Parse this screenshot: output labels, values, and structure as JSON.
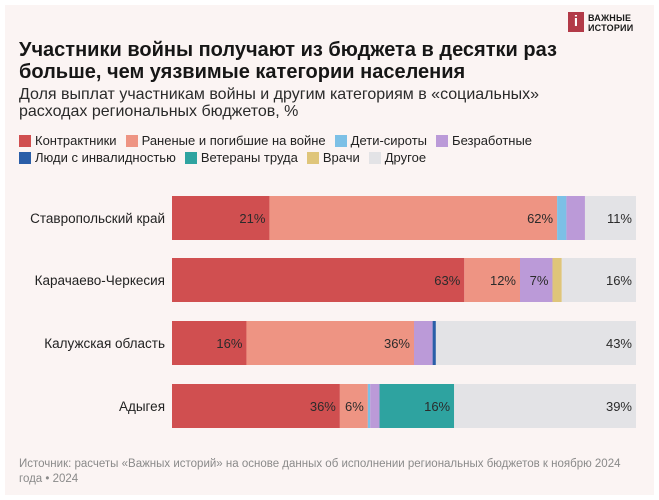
{
  "header": {
    "logo_mark": "i",
    "logo_text": "ВАЖНЫЕ\nИСТОРИИ",
    "title": "Участники войны получают из бюджета в десятки раз больше, чем уязвимые категории населения",
    "subtitle": "Доля выплат участникам войны и другим категориям в «социальных» расходах региональных бюджетов, %"
  },
  "source": "Источник: расчеты «Важных историй» на основе данных об исполнении региональных бюджетов к ноябрю 2024 года • 2024",
  "chart_data": {
    "type": "bar",
    "orientation": "horizontal",
    "stacked": true,
    "normalized": true,
    "unit": "%",
    "categories": [
      "Ставропольский край",
      "Карачаево-Черкесия",
      "Калужская область",
      "Адыгея"
    ],
    "series": [
      {
        "name": "Контрактники",
        "color": "#d04f50",
        "values": [
          21,
          63,
          16,
          36
        ],
        "labels": [
          "21%",
          "63%",
          "16%",
          "36%"
        ]
      },
      {
        "name": "Раненые и погибшие на войне",
        "color": "#ee9483",
        "values": [
          62,
          12,
          36,
          6
        ],
        "labels": [
          "62%",
          "12%",
          "36%",
          "6%"
        ]
      },
      {
        "name": "Дети-сироты",
        "color": "#7cc0e6",
        "values": [
          2,
          0,
          0,
          0.5
        ],
        "labels": [
          "",
          "",
          "",
          ""
        ]
      },
      {
        "name": "Безработные",
        "color": "#bb9ad8",
        "values": [
          4,
          7,
          4,
          2
        ],
        "labels": [
          "",
          "7%",
          "",
          ""
        ]
      },
      {
        "name": "Люди с инвалидностью",
        "color": "#2a5ea8",
        "values": [
          0,
          0,
          0.7,
          0
        ],
        "labels": [
          "",
          "",
          "",
          ""
        ]
      },
      {
        "name": "Ветераны труда",
        "color": "#2ea3a0",
        "values": [
          0,
          0,
          0,
          16
        ],
        "labels": [
          "",
          "",
          "",
          "16%"
        ]
      },
      {
        "name": "Врачи",
        "color": "#dfc57a",
        "values": [
          0,
          2,
          0,
          0
        ],
        "labels": [
          "",
          "",
          "",
          ""
        ]
      },
      {
        "name": "Другое",
        "color": "#e3e3e6",
        "values": [
          11,
          16,
          43,
          39
        ],
        "labels": [
          "11%",
          "16%",
          "43%",
          "39%"
        ]
      }
    ],
    "legend_rows": [
      [
        0,
        1,
        2,
        3
      ],
      [
        4,
        5,
        6,
        7
      ]
    ],
    "xlim": [
      0,
      100
    ],
    "grid": false,
    "legend_position": "top"
  }
}
